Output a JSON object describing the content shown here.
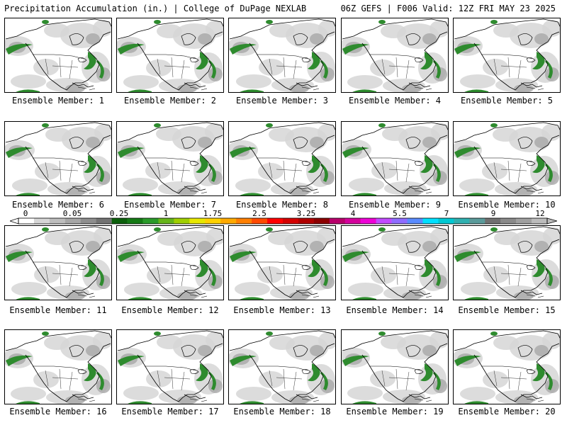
{
  "header": {
    "left_title": "Precipitation Accumulation (in.) | College of DuPage NEXLAB",
    "right_title": "06Z GEFS | F006 Valid: 12Z FRI MAY 23 2025"
  },
  "panel_label_prefix": "Ensemble Member: ",
  "members": [
    1,
    2,
    3,
    4,
    5,
    6,
    7,
    8,
    9,
    10,
    11,
    12,
    13,
    14,
    15,
    16,
    17,
    18,
    19,
    20
  ],
  "panel_labels": [
    "Ensemble Member: 1",
    "Ensemble Member: 2",
    "Ensemble Member: 3",
    "Ensemble Member: 4",
    "Ensemble Member: 5",
    "Ensemble Member: 6",
    "Ensemble Member: 7",
    "Ensemble Member: 8",
    "Ensemble Member: 9",
    "Ensemble Member: 10",
    "Ensemble Member: 11",
    "Ensemble Member: 12",
    "Ensemble Member: 13",
    "Ensemble Member: 14",
    "Ensemble Member: 15",
    "Ensemble Member: 16",
    "Ensemble Member: 17",
    "Ensemble Member: 18",
    "Ensemble Member: 19",
    "Ensemble Member: 20"
  ],
  "colorbar": {
    "tick_labels": [
      "0",
      "0.05",
      "0.25",
      "1",
      "1.75",
      "2.5",
      "3.25",
      "4",
      "5.5",
      "7",
      "9",
      "12"
    ],
    "colors": [
      "#ffffff",
      "#d6d6d6",
      "#bdbdbd",
      "#a6a6a6",
      "#8e8e8e",
      "#737373",
      "#0b5f0b",
      "#157a15",
      "#2a9a2a",
      "#66b51a",
      "#a0cf00",
      "#e8e800",
      "#ffd200",
      "#ffaa00",
      "#ff7f00",
      "#ff4a00",
      "#ff0000",
      "#d40000",
      "#b00000",
      "#8c0000",
      "#b8006b",
      "#d4009c",
      "#ee00d6",
      "#c14cff",
      "#8f6cff",
      "#5a8cff",
      "#00e0ff",
      "#00c8d2",
      "#30b0b0",
      "#5a9a9a",
      "#707070",
      "#8a8a8a",
      "#a0a0a0",
      "#bcbcbc"
    ]
  },
  "colors": {
    "map_background": "#ffffff",
    "light_precip": "#d6d6d6",
    "mid_precip": "#a8a8a8",
    "green_precip": "#2e8b2e",
    "coastline": "#000000"
  }
}
